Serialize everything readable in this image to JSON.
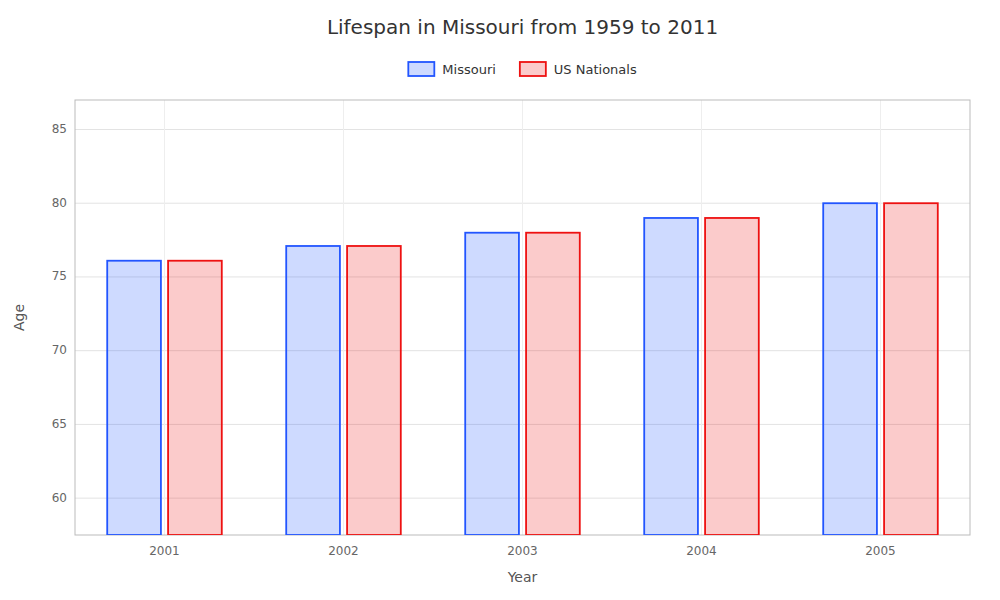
{
  "chart_data": {
    "type": "bar",
    "title": "Lifespan in Missouri from 1959 to 2011",
    "x_label": "Year",
    "y_label": "Age",
    "categories": [
      "2001",
      "2002",
      "2003",
      "2004",
      "2005"
    ],
    "series": [
      {
        "name": "Missouri",
        "color": "#2255ff",
        "values": [
          76.1,
          77.1,
          78.0,
          79.0,
          80.0
        ]
      },
      {
        "name": "US Nationals",
        "color": "#ee1111",
        "values": [
          76.1,
          77.1,
          78.0,
          79.0,
          80.0
        ]
      }
    ],
    "ylim": [
      57.5,
      87
    ],
    "yticks": [
      60,
      65,
      70,
      75,
      80,
      85
    ],
    "grid": true,
    "legend": "top"
  }
}
